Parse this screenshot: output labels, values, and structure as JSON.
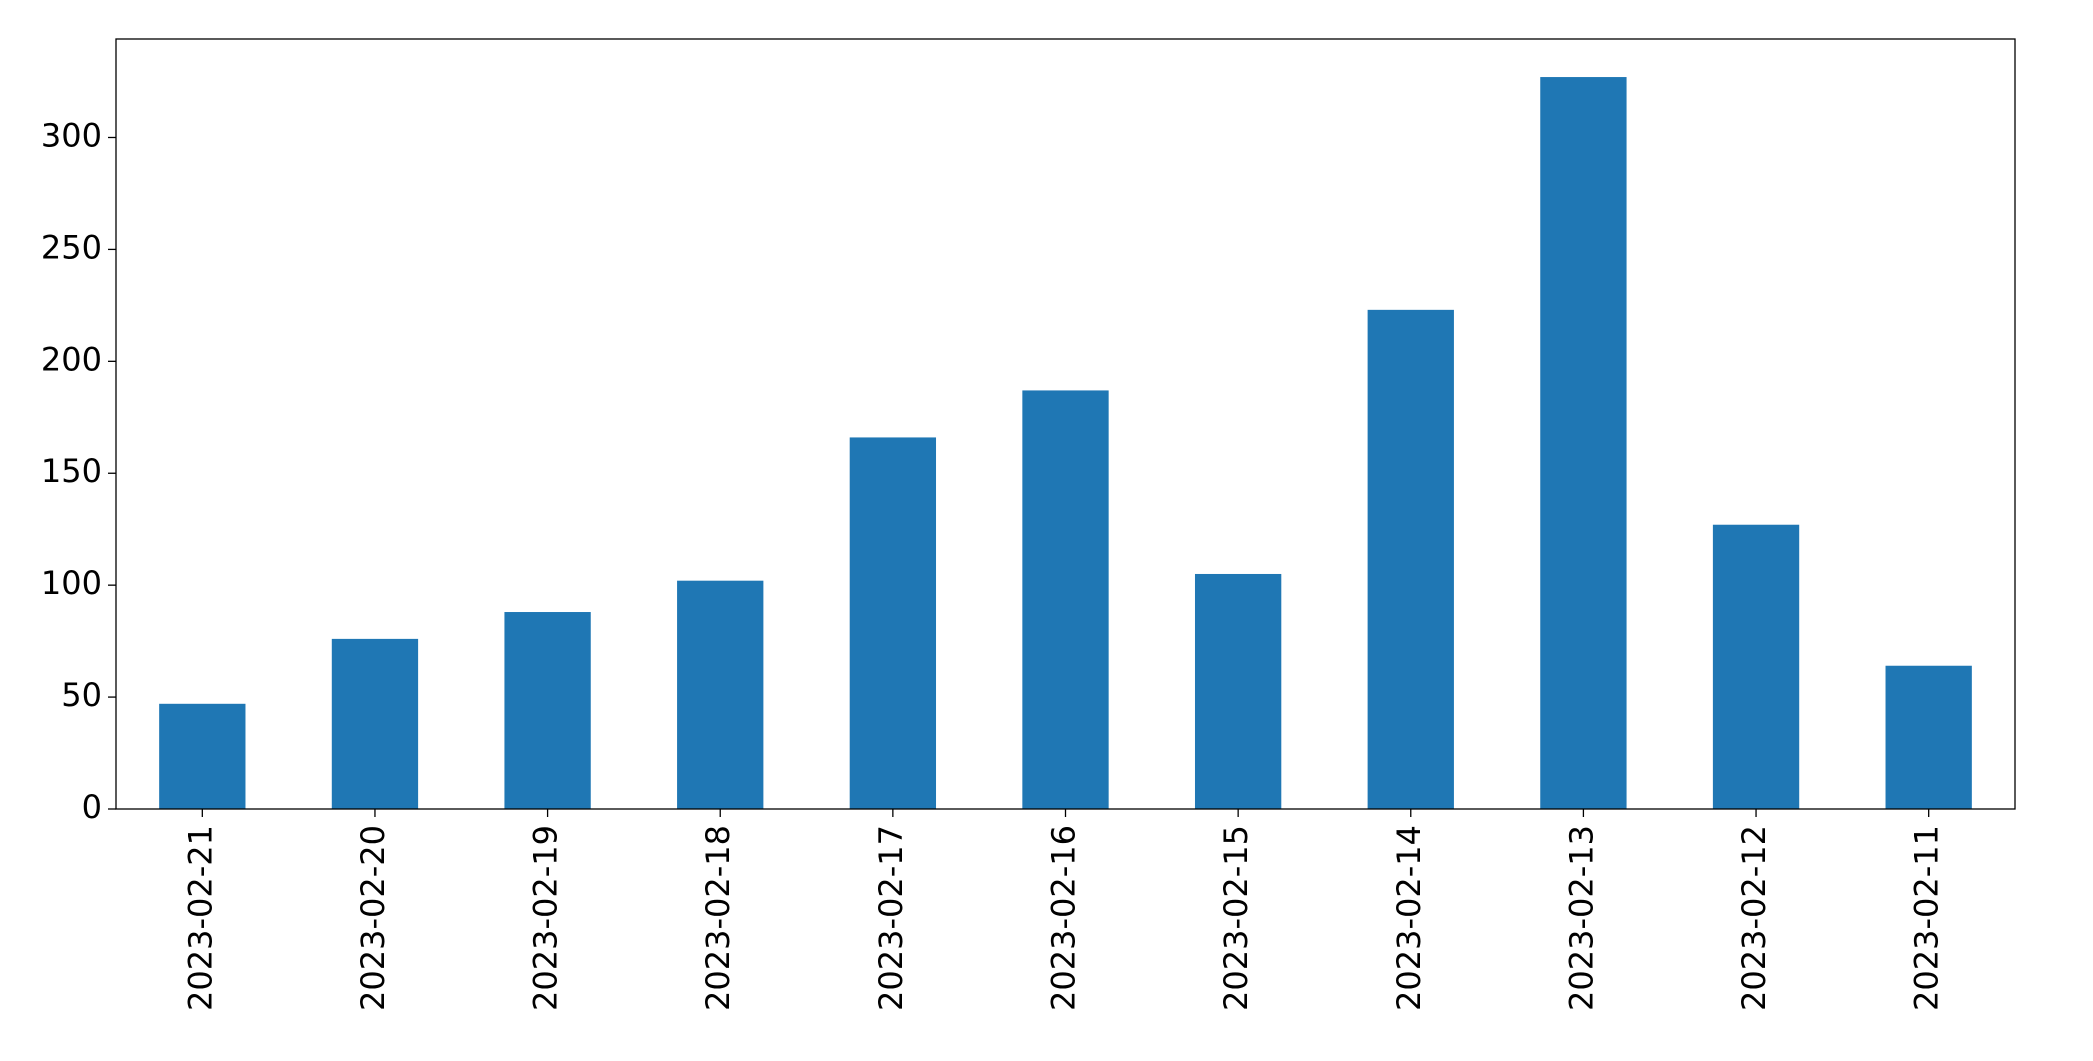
{
  "chart_data": {
    "type": "bar",
    "categories": [
      "2023-02-21",
      "2023-02-20",
      "2023-02-19",
      "2023-02-18",
      "2023-02-17",
      "2023-02-16",
      "2023-02-15",
      "2023-02-14",
      "2023-02-13",
      "2023-02-12",
      "2023-02-11"
    ],
    "values": [
      47,
      76,
      88,
      102,
      166,
      187,
      105,
      223,
      327,
      127,
      64
    ],
    "color": "#1f77b4",
    "ylim": [
      0,
      344
    ],
    "yticks": [
      0,
      50,
      100,
      150,
      200,
      250,
      300
    ],
    "grid": false
  }
}
